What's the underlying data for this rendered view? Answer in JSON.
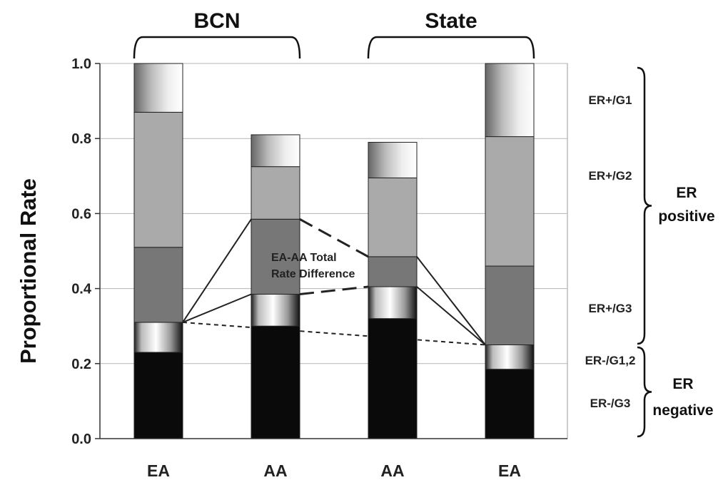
{
  "chart_data": {
    "type": "bar",
    "stacked": true,
    "ylabel": "Proportional Rate",
    "ylim": [
      0,
      1.0
    ],
    "yticks": [
      "0.0",
      "0.2",
      "0.4",
      "0.6",
      "0.8",
      "1.0"
    ],
    "grid": true,
    "categories": [
      "EA",
      "AA",
      "AA",
      "EA"
    ],
    "groups": [
      {
        "name": "BCN",
        "categories": [
          0,
          1
        ]
      },
      {
        "name": "State",
        "categories": [
          2,
          3
        ]
      }
    ],
    "series": [
      {
        "name": "ER-/G3",
        "values": [
          0.23,
          0.3,
          0.32,
          0.185
        ],
        "color": "#0a0a0a"
      },
      {
        "name": "ER-/G1,2",
        "values": [
          0.08,
          0.085,
          0.085,
          0.065
        ],
        "color": "gradient-metal"
      },
      {
        "name": "ER+/G3",
        "values": [
          0.2,
          0.2,
          0.08,
          0.21
        ],
        "color": "#777777"
      },
      {
        "name": "ER+/G2",
        "values": [
          0.36,
          0.14,
          0.21,
          0.345
        ],
        "color": "#aaaaaa"
      },
      {
        "name": "ER+/G1",
        "values": [
          0.13,
          0.085,
          0.095,
          0.195
        ],
        "color": "gradient-light"
      }
    ],
    "brace_groups": [
      {
        "label_lines": [
          "ER",
          "positive"
        ],
        "segments": [
          "ER+/G1",
          "ER+/G2",
          "ER+/G3"
        ]
      },
      {
        "label_lines": [
          "ER",
          "negative"
        ],
        "segments": [
          "ER-/G1,2",
          "ER-/G3"
        ]
      }
    ],
    "annotation": {
      "lines": [
        "EA-AA Total",
        "Rate Difference"
      ]
    }
  }
}
